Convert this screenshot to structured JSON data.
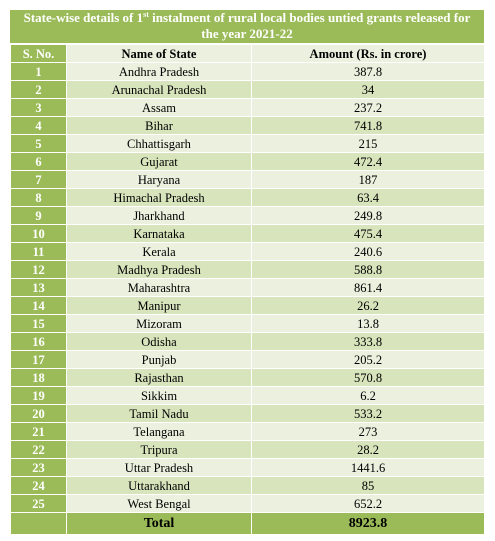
{
  "title": {
    "prefix": "State-wise details of 1",
    "superscript": "st",
    "suffix": " instalment of rural local bodies untied grants released for the year 2021-22"
  },
  "columns": {
    "sno": "S. No.",
    "name": "Name of State",
    "amount": "Amount (Rs. in crore)"
  },
  "rows": [
    {
      "sno": "1",
      "state": "Andhra Pradesh",
      "amount": "387.8"
    },
    {
      "sno": "2",
      "state": "Arunachal Pradesh",
      "amount": "34"
    },
    {
      "sno": "3",
      "state": "Assam",
      "amount": "237.2"
    },
    {
      "sno": "4",
      "state": "Bihar",
      "amount": "741.8"
    },
    {
      "sno": "5",
      "state": "Chhattisgarh",
      "amount": "215"
    },
    {
      "sno": "6",
      "state": "Gujarat",
      "amount": "472.4"
    },
    {
      "sno": "7",
      "state": "Haryana",
      "amount": "187"
    },
    {
      "sno": "8",
      "state": "Himachal Pradesh",
      "amount": "63.4"
    },
    {
      "sno": "9",
      "state": "Jharkhand",
      "amount": "249.8"
    },
    {
      "sno": "10",
      "state": "Karnataka",
      "amount": "475.4"
    },
    {
      "sno": "11",
      "state": "Kerala",
      "amount": "240.6"
    },
    {
      "sno": "12",
      "state": "Madhya Pradesh",
      "amount": "588.8"
    },
    {
      "sno": "13",
      "state": "Maharashtra",
      "amount": "861.4"
    },
    {
      "sno": "14",
      "state": "Manipur",
      "amount": "26.2"
    },
    {
      "sno": "15",
      "state": "Mizoram",
      "amount": "13.8"
    },
    {
      "sno": "16",
      "state": "Odisha",
      "amount": "333.8"
    },
    {
      "sno": "17",
      "state": "Punjab",
      "amount": "205.2"
    },
    {
      "sno": "18",
      "state": "Rajasthan",
      "amount": "570.8"
    },
    {
      "sno": "19",
      "state": "Sikkim",
      "amount": "6.2"
    },
    {
      "sno": "20",
      "state": "Tamil Nadu",
      "amount": "533.2"
    },
    {
      "sno": "21",
      "state": "Telangana",
      "amount": "273"
    },
    {
      "sno": "22",
      "state": "Tripura",
      "amount": "28.2"
    },
    {
      "sno": "23",
      "state": "Uttar Pradesh",
      "amount": "1441.6"
    },
    {
      "sno": "24",
      "state": "Uttarakhand",
      "amount": "85"
    },
    {
      "sno": "25",
      "state": "West Bengal",
      "amount": "652.2"
    }
  ],
  "total": {
    "label": "Total",
    "amount": "8923.8"
  },
  "colors": {
    "header_green": "#9bbb59",
    "row_light": "#ebf1de",
    "row_dark": "#d7e4bc"
  }
}
